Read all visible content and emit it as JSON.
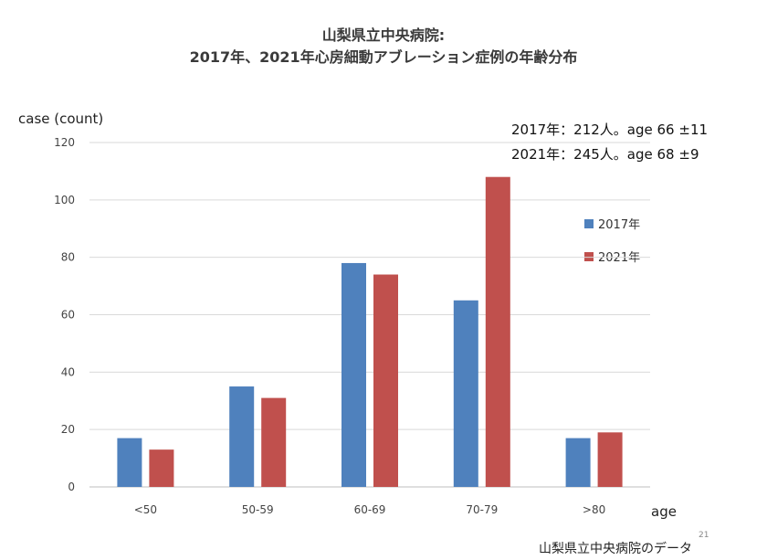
{
  "chart_data": {
    "type": "bar",
    "title": "山梨県立中央病院:",
    "subtitle": "2017年、2021年心房細動アブレーション症例の年齢分布",
    "ylabel": "case (count)",
    "xlabel": "age",
    "ylim": [
      0,
      120
    ],
    "yticks": [
      "0",
      "20",
      "40",
      "60",
      "80",
      "100",
      "120"
    ],
    "categories": [
      "<50",
      "50-59",
      "60-69",
      "70-79",
      ">80"
    ],
    "series": [
      {
        "name": "2017年",
        "color": "#4f81bd",
        "values": [
          17,
          35,
          78,
          65,
          17
        ]
      },
      {
        "name": "2021年",
        "color": "#c0504d",
        "values": [
          13,
          31,
          74,
          108,
          19
        ]
      }
    ],
    "grid": true,
    "legend": "right"
  },
  "annotations": {
    "line1": "2017年：212人。age 66 ±11",
    "line2": "2021年：245人。age 68 ±9"
  },
  "footer": {
    "source": "山梨県立中央病院のデータ",
    "page": "21"
  }
}
